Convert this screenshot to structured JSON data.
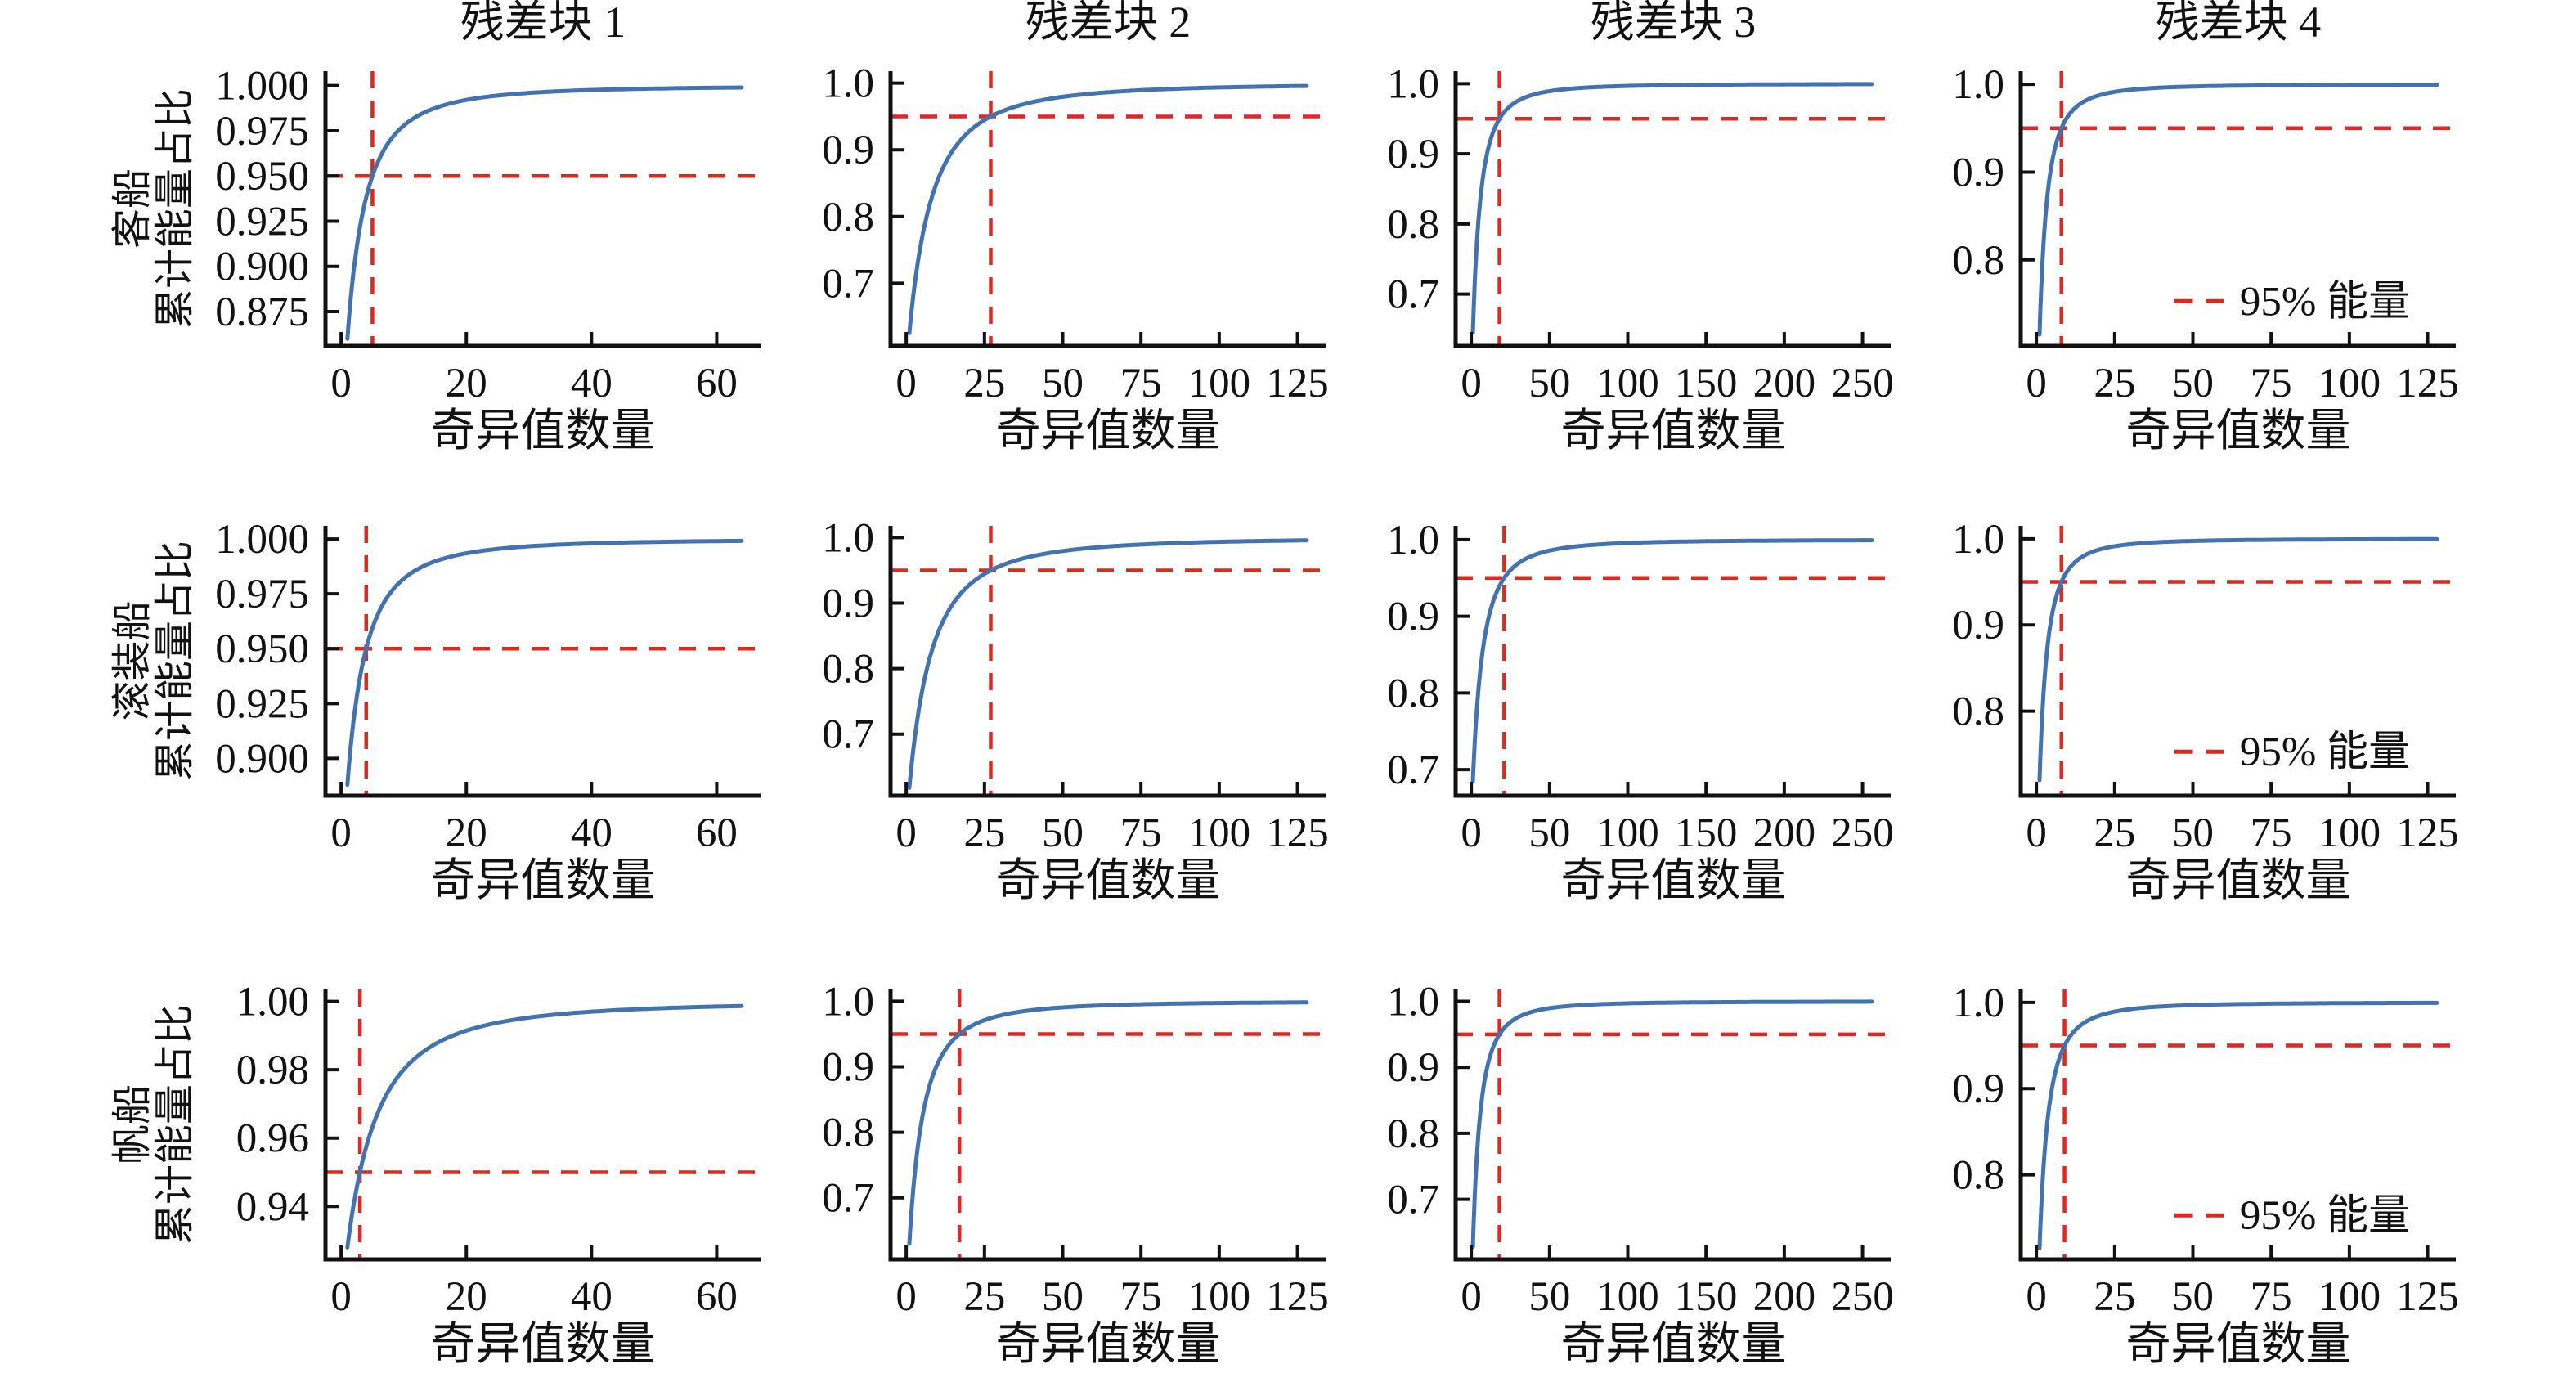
{
  "figure": {
    "xlabel": "奇异值数量",
    "ylabel_suffix": "累计能量占比",
    "legend_label": "95% 能量",
    "threshold_value": 0.95,
    "col_titles": [
      "残差块 1",
      "残差块 2",
      "残差块 3",
      "残差块 4"
    ],
    "row_labels": [
      "客船",
      "滚装船",
      "帆船"
    ],
    "colors": {
      "curve": "#4273ae",
      "threshold": "#dc2a22",
      "axis": "#111111",
      "background": "#ffffff"
    }
  },
  "chart_data": [
    {
      "type": "line",
      "ship": "客船",
      "block": "残差块 1",
      "xlabel": "奇异值数量",
      "x_ticks": [
        0,
        20,
        40,
        60
      ],
      "xlim": [
        -2.5,
        67
      ],
      "y_tick_labels": [
        "0.875",
        "0.900",
        "0.925",
        "0.950",
        "0.975",
        "1.000"
      ],
      "y_tick_values": [
        0.875,
        0.9,
        0.925,
        0.95,
        0.975,
        1.0
      ],
      "ylim": [
        0.856,
        1.008
      ],
      "n_singular_values": 64,
      "start_ratio": 0.86,
      "k_at_95_percent": 5,
      "threshold": 0.95,
      "final_ratio": 1.0,
      "show_legend": false
    },
    {
      "type": "line",
      "ship": "客船",
      "block": "残差块 2",
      "xlabel": "奇异值数量",
      "x_ticks": [
        0,
        25,
        50,
        75,
        100,
        125
      ],
      "xlim": [
        -5,
        134
      ],
      "y_tick_labels": [
        "0.7",
        "0.8",
        "0.9",
        "1.0"
      ],
      "y_tick_values": [
        0.7,
        0.8,
        0.9,
        1.0
      ],
      "ylim": [
        0.606,
        1.018
      ],
      "n_singular_values": 128,
      "start_ratio": 0.625,
      "k_at_95_percent": 27,
      "threshold": 0.95,
      "final_ratio": 1.0,
      "show_legend": false
    },
    {
      "type": "line",
      "ship": "客船",
      "block": "残差块 3",
      "xlabel": "奇异值数量",
      "x_ticks": [
        0,
        50,
        100,
        150,
        200,
        250
      ],
      "xlim": [
        -10,
        268
      ],
      "y_tick_labels": [
        "0.7",
        "0.8",
        "0.9",
        "1.0"
      ],
      "y_tick_values": [
        0.7,
        0.8,
        0.9,
        1.0
      ],
      "ylim": [
        0.626,
        1.018
      ],
      "n_singular_values": 256,
      "start_ratio": 0.645,
      "k_at_95_percent": 18,
      "threshold": 0.95,
      "final_ratio": 1.0,
      "show_legend": false
    },
    {
      "type": "line",
      "ship": "客船",
      "block": "残差块 4",
      "xlabel": "奇异值数量",
      "x_ticks": [
        0,
        25,
        50,
        75,
        100,
        125
      ],
      "xlim": [
        -5,
        134
      ],
      "y_tick_labels": [
        "0.8",
        "0.9",
        "1.0"
      ],
      "y_tick_values": [
        0.8,
        0.9,
        1.0
      ],
      "ylim": [
        0.702,
        1.015
      ],
      "n_singular_values": 128,
      "start_ratio": 0.715,
      "k_at_95_percent": 8,
      "threshold": 0.95,
      "final_ratio": 1.0,
      "show_legend": true
    },
    {
      "type": "line",
      "ship": "滚装船",
      "block": "残差块 1",
      "xlabel": "奇异值数量",
      "x_ticks": [
        0,
        20,
        40,
        60
      ],
      "xlim": [
        -2.5,
        67
      ],
      "y_tick_labels": [
        "0.900",
        "0.925",
        "0.950",
        "0.975",
        "1.000"
      ],
      "y_tick_values": [
        0.9,
        0.925,
        0.95,
        0.975,
        1.0
      ],
      "ylim": [
        0.883,
        1.006
      ],
      "n_singular_values": 64,
      "start_ratio": 0.888,
      "k_at_95_percent": 4,
      "threshold": 0.95,
      "final_ratio": 1.0,
      "show_legend": false
    },
    {
      "type": "line",
      "ship": "滚装船",
      "block": "残差块 2",
      "xlabel": "奇异值数量",
      "x_ticks": [
        0,
        25,
        50,
        75,
        100,
        125
      ],
      "xlim": [
        -5,
        134
      ],
      "y_tick_labels": [
        "0.7",
        "0.8",
        "0.9",
        "1.0"
      ],
      "y_tick_values": [
        0.7,
        0.8,
        0.9,
        1.0
      ],
      "ylim": [
        0.606,
        1.018
      ],
      "n_singular_values": 128,
      "start_ratio": 0.618,
      "k_at_95_percent": 27,
      "threshold": 0.95,
      "final_ratio": 1.0,
      "show_legend": false
    },
    {
      "type": "line",
      "ship": "滚装船",
      "block": "残差块 3",
      "xlabel": "奇异值数量",
      "x_ticks": [
        0,
        50,
        100,
        150,
        200,
        250
      ],
      "xlim": [
        -10,
        268
      ],
      "y_tick_labels": [
        "0.7",
        "0.8",
        "0.9",
        "1.0"
      ],
      "y_tick_values": [
        0.7,
        0.8,
        0.9,
        1.0
      ],
      "ylim": [
        0.666,
        1.018
      ],
      "n_singular_values": 256,
      "start_ratio": 0.685,
      "k_at_95_percent": 21,
      "threshold": 0.95,
      "final_ratio": 1.0,
      "show_legend": false
    },
    {
      "type": "line",
      "ship": "滚装船",
      "block": "残差块 4",
      "xlabel": "奇异值数量",
      "x_ticks": [
        0,
        25,
        50,
        75,
        100,
        125
      ],
      "xlim": [
        -5,
        134
      ],
      "y_tick_labels": [
        "0.8",
        "0.9",
        "1.0"
      ],
      "y_tick_values": [
        0.8,
        0.9,
        1.0
      ],
      "ylim": [
        0.702,
        1.015
      ],
      "n_singular_values": 128,
      "start_ratio": 0.72,
      "k_at_95_percent": 8,
      "threshold": 0.95,
      "final_ratio": 1.0,
      "show_legend": true
    },
    {
      "type": "line",
      "ship": "帆船",
      "block": "残差块 1",
      "xlabel": "奇异值数量",
      "x_ticks": [
        0,
        20,
        40,
        60
      ],
      "xlim": [
        -2.5,
        67
      ],
      "y_tick_labels": [
        "0.94",
        "0.96",
        "0.98",
        "1.00"
      ],
      "y_tick_values": [
        0.94,
        0.96,
        0.98,
        1.0
      ],
      "ylim": [
        0.9245,
        1.0035
      ],
      "n_singular_values": 64,
      "start_ratio": 0.928,
      "k_at_95_percent": 3,
      "threshold": 0.95,
      "final_ratio": 1.0,
      "show_legend": false
    },
    {
      "type": "line",
      "ship": "帆船",
      "block": "残差块 2",
      "xlabel": "奇异值数量",
      "x_ticks": [
        0,
        25,
        50,
        75,
        100,
        125
      ],
      "xlim": [
        -5,
        134
      ],
      "y_tick_labels": [
        "0.7",
        "0.8",
        "0.9",
        "1.0"
      ],
      "y_tick_values": [
        0.7,
        0.8,
        0.9,
        1.0
      ],
      "ylim": [
        0.606,
        1.018
      ],
      "n_singular_values": 128,
      "start_ratio": 0.63,
      "k_at_95_percent": 17,
      "threshold": 0.95,
      "final_ratio": 1.0,
      "show_legend": false
    },
    {
      "type": "line",
      "ship": "帆船",
      "block": "残差块 3",
      "xlabel": "奇异值数量",
      "x_ticks": [
        0,
        50,
        100,
        150,
        200,
        250
      ],
      "xlim": [
        -10,
        268
      ],
      "y_tick_labels": [
        "0.7",
        "0.8",
        "0.9",
        "1.0"
      ],
      "y_tick_values": [
        0.7,
        0.8,
        0.9,
        1.0
      ],
      "ylim": [
        0.609,
        1.018
      ],
      "n_singular_values": 256,
      "start_ratio": 0.628,
      "k_at_95_percent": 18,
      "threshold": 0.95,
      "final_ratio": 1.0,
      "show_legend": false
    },
    {
      "type": "line",
      "ship": "帆船",
      "block": "残差块 4",
      "xlabel": "奇异值数量",
      "x_ticks": [
        0,
        25,
        50,
        75,
        100,
        125
      ],
      "xlim": [
        -5,
        134
      ],
      "y_tick_labels": [
        "0.8",
        "0.9",
        "1.0"
      ],
      "y_tick_values": [
        0.8,
        0.9,
        1.0
      ],
      "ylim": [
        0.702,
        1.015
      ],
      "n_singular_values": 128,
      "start_ratio": 0.715,
      "k_at_95_percent": 9,
      "threshold": 0.95,
      "final_ratio": 1.0,
      "show_legend": true
    }
  ]
}
